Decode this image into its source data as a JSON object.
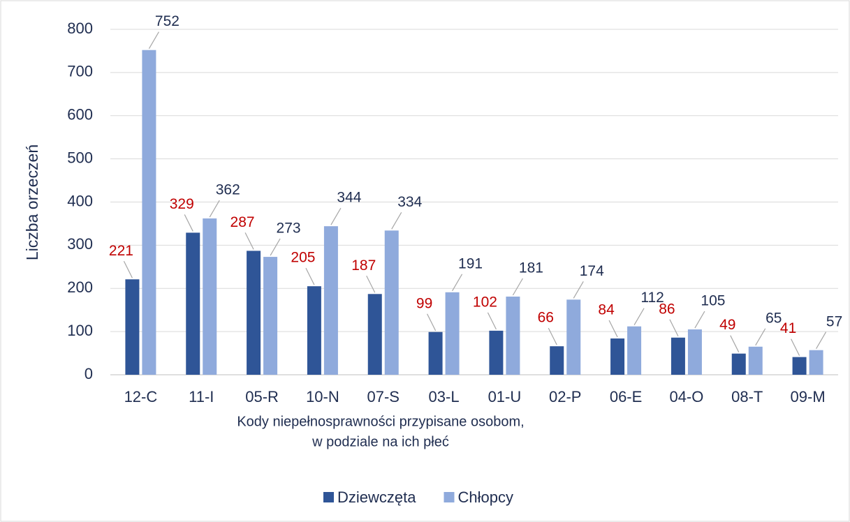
{
  "chart_data": {
    "type": "bar",
    "ylabel": "Liczba orzeczeń",
    "xlabel": [
      "Kody niepełnosprawności przypisane osobom,",
      "w  podziale na ich płeć"
    ],
    "categories": [
      "12-C",
      "11-I",
      "05-R",
      "10-N",
      "07-S",
      "03-L",
      "01-U",
      "02-P",
      "06-E",
      "04-O",
      "08-T",
      "09-M"
    ],
    "series": [
      {
        "name": "Dziewczęta",
        "color": "#2f5597",
        "label_color": "#c00000",
        "values": [
          221,
          329,
          287,
          205,
          187,
          99,
          102,
          66,
          84,
          86,
          49,
          41
        ]
      },
      {
        "name": "Chłopcy",
        "color": "#8faadc",
        "label_color": "#1f2d50",
        "values": [
          752,
          362,
          273,
          344,
          334,
          191,
          181,
          174,
          112,
          105,
          65,
          57
        ]
      }
    ],
    "ylim": [
      0,
      800
    ],
    "yticks": [
      0,
      100,
      200,
      300,
      400,
      500,
      600,
      700,
      800
    ],
    "grid": true,
    "legend": "bottom"
  }
}
